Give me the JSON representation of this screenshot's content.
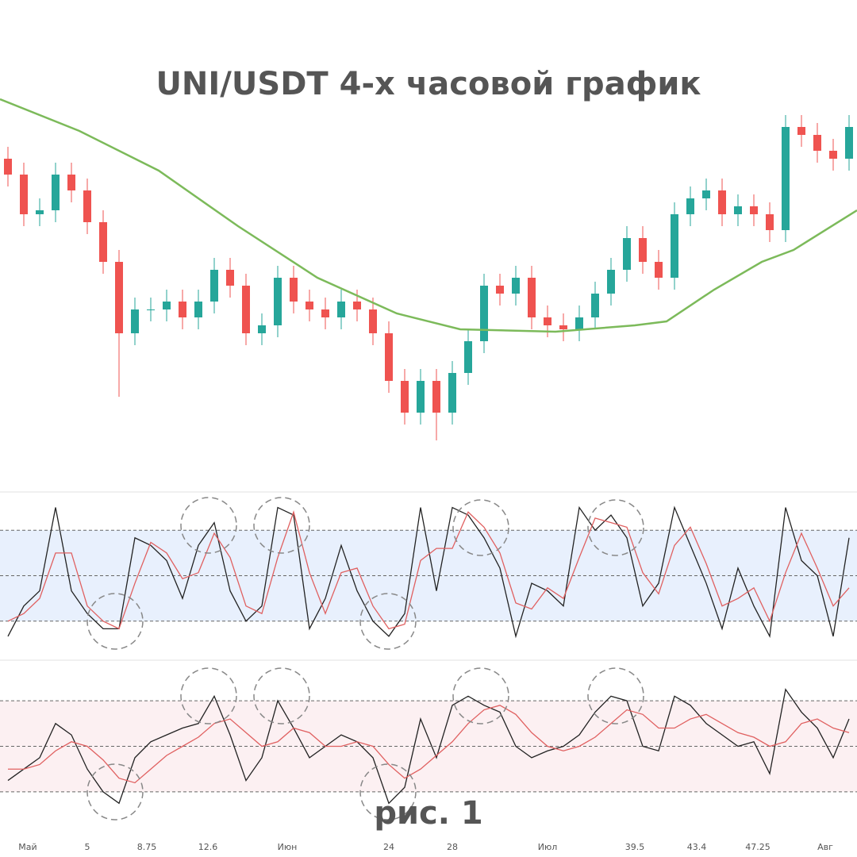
{
  "title": "UNI/USDT 4-х часовой график",
  "caption": "рис. 1",
  "chart_data": [
    {
      "type": "candlestick",
      "xlim": [
        -0.5,
        53.5
      ],
      "ylim": [
        0,
        100
      ],
      "up_color": "#26a69a",
      "down_color": "#ef5350",
      "open": [
        80,
        76,
        66,
        67,
        76,
        72,
        64,
        54,
        36,
        42,
        42,
        44,
        40,
        44,
        52,
        48,
        36,
        38,
        50,
        44,
        42,
        40,
        44,
        42,
        36,
        24,
        16,
        24,
        16,
        26,
        34,
        48,
        46,
        50,
        40,
        38,
        37,
        40,
        46,
        52,
        60,
        54,
        50,
        66,
        70,
        72,
        66,
        68,
        66,
        62,
        88,
        86,
        82,
        80
      ],
      "high": [
        83,
        79,
        70,
        79,
        79,
        75,
        67,
        57,
        45,
        45,
        47,
        47,
        47,
        55,
        55,
        51,
        41,
        53,
        53,
        47,
        45,
        47,
        47,
        45,
        39,
        27,
        27,
        27,
        29,
        37,
        51,
        51,
        53,
        53,
        43,
        41,
        43,
        49,
        55,
        63,
        63,
        57,
        69,
        73,
        75,
        75,
        71,
        71,
        69,
        91,
        91,
        89,
        85,
        91
      ],
      "low": [
        73,
        63,
        63,
        64,
        69,
        61,
        51,
        20,
        33,
        39,
        39,
        37,
        37,
        41,
        45,
        33,
        33,
        35,
        41,
        39,
        37,
        37,
        39,
        33,
        21,
        13,
        13,
        9,
        13,
        23,
        31,
        43,
        43,
        37,
        35,
        34,
        34,
        37,
        43,
        49,
        51,
        47,
        47,
        63,
        67,
        63,
        63,
        63,
        59,
        59,
        83,
        79,
        77,
        77
      ],
      "close": [
        76,
        66,
        67,
        76,
        72,
        64,
        54,
        36,
        42,
        42,
        44,
        40,
        44,
        52,
        48,
        36,
        38,
        50,
        44,
        42,
        40,
        44,
        42,
        36,
        24,
        16,
        24,
        16,
        26,
        34,
        48,
        46,
        50,
        40,
        38,
        37,
        40,
        46,
        52,
        60,
        54,
        50,
        66,
        70,
        72,
        66,
        68,
        66,
        62,
        88,
        86,
        82,
        80,
        88
      ],
      "ma": {
        "color": "#7cba5a",
        "x": [
          -0.5,
          4.5,
          9.5,
          14.5,
          19.5,
          24.5,
          28.5,
          34.5,
          39.5,
          41.5,
          44.5,
          47.5,
          49.5,
          53.5
        ],
        "values": [
          95,
          87,
          77,
          63,
          50,
          41,
          37,
          36.4,
          38,
          39,
          47,
          54,
          57,
          67
        ]
      }
    },
    {
      "type": "oscillator",
      "xlim": [
        -0.5,
        53.5
      ],
      "ylim": [
        0,
        100
      ],
      "yticks": [
        20,
        50,
        80
      ],
      "band": [
        20,
        80
      ],
      "band_color": "#e8f0fd",
      "series": [
        {
          "color": "#222222",
          "values": [
            10,
            30,
            40,
            95,
            40,
            25,
            15,
            15,
            75,
            70,
            60,
            35,
            70,
            85,
            40,
            20,
            30,
            95,
            90,
            15,
            35,
            70,
            40,
            20,
            10,
            25,
            95,
            40,
            95,
            90,
            75,
            55,
            10,
            45,
            40,
            30,
            95,
            80,
            90,
            75,
            30,
            45,
            95,
            70,
            45,
            15,
            55,
            30,
            10,
            95,
            60,
            50,
            10,
            75
          ]
        },
        {
          "color": "#e06060",
          "values": [
            20,
            25,
            35,
            65,
            65,
            30,
            20,
            15,
            45,
            72,
            65,
            48,
            52,
            78,
            62,
            30,
            25,
            62,
            92,
            52,
            25,
            52,
            55,
            30,
            15,
            18,
            60,
            68,
            68,
            92,
            82,
            65,
            32,
            28,
            42,
            35,
            62,
            88,
            85,
            82,
            52,
            38,
            70,
            82,
            58,
            30,
            35,
            42,
            20,
            52,
            78,
            55,
            30,
            42
          ]
        }
      ]
    },
    {
      "type": "oscillator",
      "xlim": [
        -0.5,
        53.5
      ],
      "ylim": [
        15,
        85
      ],
      "yticks": [
        30,
        50,
        70
      ],
      "band": [
        30,
        70
      ],
      "band_color": "#fcf0f2",
      "xticks": [
        {
          "value": 1.25,
          "label": "Май"
        },
        5,
        8.75,
        12.6,
        {
          "value": 17.6,
          "label": "Июн"
        },
        24,
        28,
        {
          "value": 34,
          "label": "Июл"
        },
        39.5,
        43.4,
        47.25,
        {
          "value": 51.5,
          "label": "Авг"
        }
      ],
      "series": [
        {
          "color": "#222222",
          "values": [
            35,
            40,
            45,
            60,
            55,
            40,
            30,
            25,
            45,
            52,
            55,
            58,
            60,
            72,
            55,
            35,
            45,
            70,
            58,
            45,
            50,
            55,
            52,
            45,
            25,
            32,
            62,
            45,
            68,
            72,
            68,
            65,
            50,
            45,
            48,
            50,
            55,
            65,
            72,
            70,
            50,
            48,
            72,
            68,
            60,
            55,
            50,
            52,
            38,
            75,
            65,
            58,
            45,
            62
          ]
        },
        {
          "color": "#e06060",
          "values": [
            40,
            40,
            42,
            48,
            52,
            50,
            44,
            36,
            34,
            40,
            46,
            50,
            54,
            60,
            62,
            56,
            50,
            52,
            58,
            56,
            50,
            50,
            52,
            50,
            42,
            36,
            40,
            46,
            52,
            60,
            66,
            68,
            64,
            56,
            50,
            48,
            50,
            54,
            60,
            66,
            64,
            58,
            58,
            62,
            64,
            60,
            56,
            54,
            50,
            52,
            60,
            62,
            58,
            56
          ]
        }
      ]
    }
  ]
}
